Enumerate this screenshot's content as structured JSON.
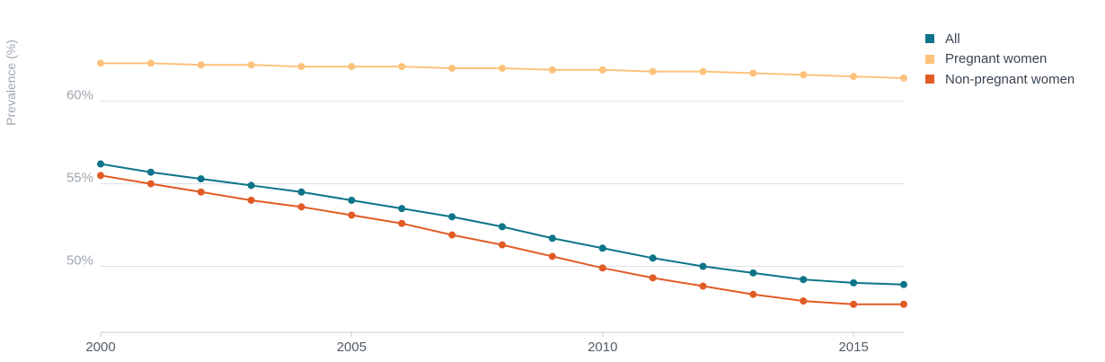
{
  "chart_data": {
    "type": "line",
    "title": "",
    "xlabel": "",
    "ylabel": "Prevalence (%)",
    "x": [
      2000,
      2001,
      2002,
      2003,
      2004,
      2005,
      2006,
      2007,
      2008,
      2009,
      2010,
      2011,
      2012,
      2013,
      2014,
      2015,
      2016
    ],
    "x_ticks": [
      "2000",
      "2005",
      "2010",
      "2015"
    ],
    "y_ticks": [
      "50%",
      "55%",
      "60%"
    ],
    "ylim": [
      46,
      64.5
    ],
    "xlim": [
      2000,
      2016
    ],
    "grid": true,
    "legend_position": "top-right",
    "series": [
      {
        "name": "All",
        "color": "#0e7489",
        "values": [
          56.2,
          55.7,
          55.3,
          54.9,
          54.5,
          54.0,
          53.5,
          53.0,
          52.4,
          51.7,
          51.1,
          50.5,
          50.0,
          49.6,
          49.2,
          49.0,
          48.9
        ]
      },
      {
        "name": "Pregnant women",
        "color": "#fcc27c",
        "values": [
          62.3,
          62.3,
          62.2,
          62.2,
          62.1,
          62.1,
          62.1,
          62.0,
          62.0,
          61.9,
          61.9,
          61.8,
          61.8,
          61.7,
          61.6,
          61.5,
          61.4
        ]
      },
      {
        "name": "Non-pregnant women",
        "color": "#e15b25",
        "values": [
          55.5,
          55.0,
          54.5,
          54.0,
          53.6,
          53.1,
          52.6,
          51.9,
          51.3,
          50.6,
          49.9,
          49.3,
          48.8,
          48.3,
          47.9,
          47.7,
          47.7
        ]
      }
    ]
  }
}
